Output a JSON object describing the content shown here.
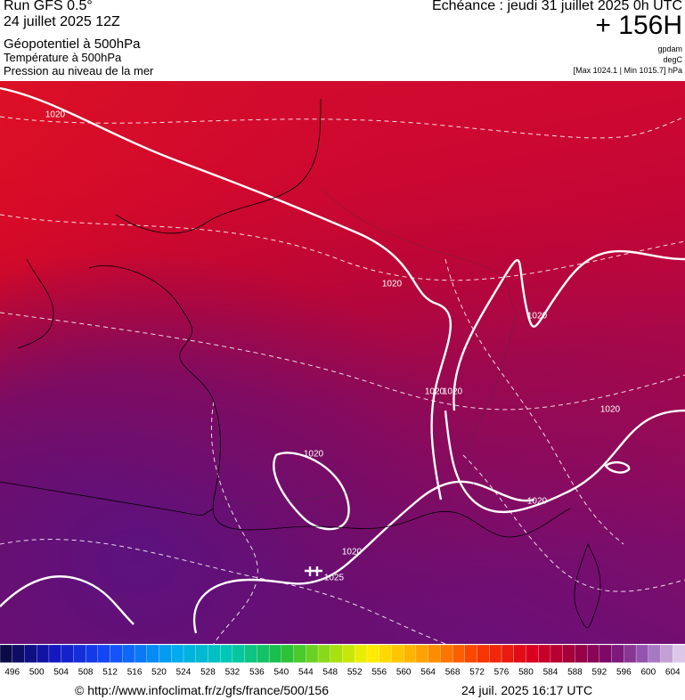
{
  "header": {
    "run": "Run GFS 0.5°",
    "date": "24 juillet 2025 12Z",
    "field1": "Géopotentiel à 500hPa",
    "field2": "Température à 500hPa",
    "field3": "Pression au niveau de la mer",
    "forecast": "Echéance : jeudi 31 juillet 2025 0h UTC",
    "lead": "+ 156H",
    "unit1": "gpdam",
    "unit2": "degC",
    "range": "[Max 1024.1 | Min 1015.7] hPa"
  },
  "map": {
    "isobar_labels": [
      1020,
      1020,
      1020,
      1020,
      1020,
      1020,
      1020,
      1020,
      1020,
      1025
    ]
  },
  "colorbar": {
    "labels": [
      496,
      500,
      504,
      508,
      512,
      516,
      520,
      524,
      528,
      532,
      536,
      540,
      544,
      548,
      552,
      556,
      560,
      564,
      568,
      572,
      576,
      580,
      584,
      588,
      592,
      596,
      600,
      604
    ]
  },
  "footer": {
    "url": "© http://www.infoclimat.fr/z/gfs/france/500/156",
    "timestamp": "24 juil. 2025 16:17 UTC"
  }
}
